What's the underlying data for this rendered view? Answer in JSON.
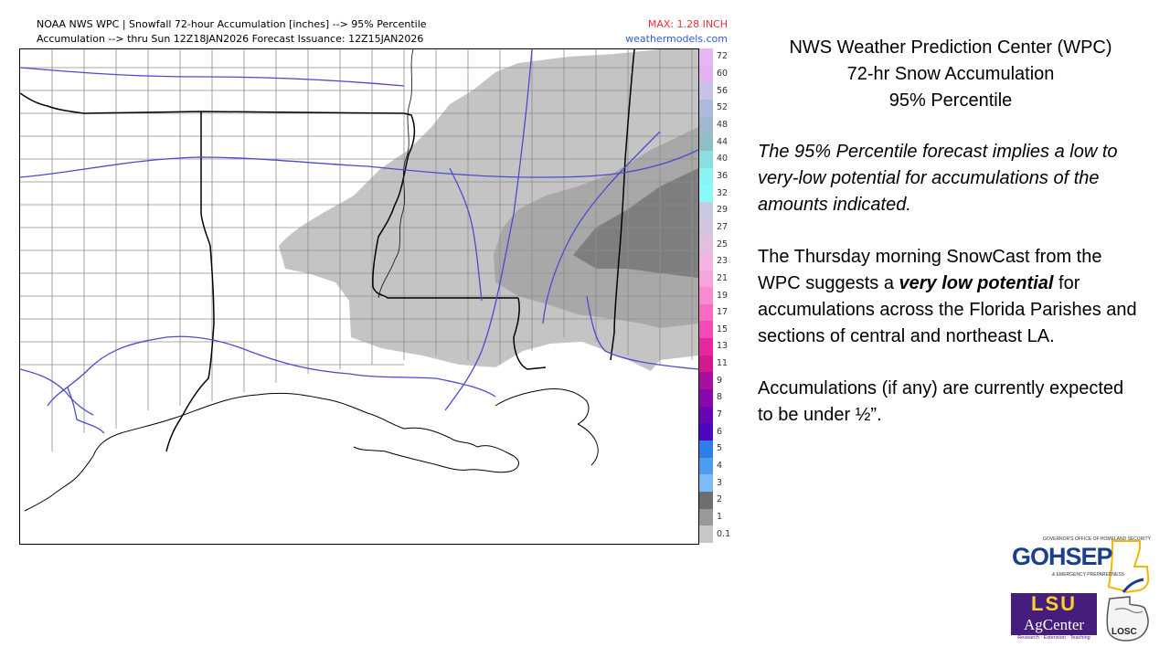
{
  "header": {
    "line1": "NOAA NWS WPC | Snowfall 72-hour Accumulation [inches] --> 95% Percentile",
    "line2": "Accumulation --> thru Sun 12Z18JAN2026   Forecast Issuance: 12Z15JAN2026",
    "max_label": "MAX: 1.28 INCH",
    "site": "weathermodels.com"
  },
  "colorbar": [
    {
      "label": "72",
      "color": "#e7b7f5"
    },
    {
      "label": "60",
      "color": "#e4b2f3"
    },
    {
      "label": "56",
      "color": "#c9c2e8"
    },
    {
      "label": "52",
      "color": "#aab9dc"
    },
    {
      "label": "48",
      "color": "#9fb8cf"
    },
    {
      "label": "44",
      "color": "#8fbfc3"
    },
    {
      "label": "40",
      "color": "#8bdedf"
    },
    {
      "label": "36",
      "color": "#8cf3f5"
    },
    {
      "label": "32",
      "color": "#8af9fb"
    },
    {
      "label": "29",
      "color": "#c9c9e1"
    },
    {
      "label": "27",
      "color": "#d4c5de"
    },
    {
      "label": "25",
      "color": "#e0c0dc"
    },
    {
      "label": "23",
      "color": "#f3b4e2"
    },
    {
      "label": "21",
      "color": "#f7a4dc"
    },
    {
      "label": "19",
      "color": "#f88ad2"
    },
    {
      "label": "17",
      "color": "#f76bc4"
    },
    {
      "label": "15",
      "color": "#f549b5"
    },
    {
      "label": "13",
      "color": "#e8269f"
    },
    {
      "label": "11",
      "color": "#d21a8e"
    },
    {
      "label": "9",
      "color": "#a80ea0"
    },
    {
      "label": "8",
      "color": "#8808ab"
    },
    {
      "label": "7",
      "color": "#6a05b3"
    },
    {
      "label": "6",
      "color": "#4a06c0"
    },
    {
      "label": "5",
      "color": "#2e7ee8"
    },
    {
      "label": "4",
      "color": "#4e9cf0"
    },
    {
      "label": "3",
      "color": "#7bbcf5"
    },
    {
      "label": "2",
      "color": "#6f6f6f"
    },
    {
      "label": "1",
      "color": "#999999"
    },
    {
      "label": "0.1",
      "color": "#c7c7c7"
    }
  ],
  "panel": {
    "title_line1": "NWS Weather Prediction Center (WPC)",
    "title_line2": "72-hr Snow Accumulation",
    "title_line3": "95% Percentile",
    "para1": "The 95% Percentile forecast implies a low to very-low potential for accumulations of the amounts indicated.",
    "para2_before": "The Thursday morning SnowCast from the WPC suggests a ",
    "para2_emph": "very low potential",
    "para2_after": " for accumulations across the Florida Parishes and sections of central and northeast LA.",
    "para3": "Accumulations (if any) are currently expected to be under ½”."
  },
  "logos": {
    "gohsep": "GOHSEP",
    "gohsep_top": "GOVERNOR'S OFFICE OF HOMELAND SECURITY",
    "gohsep_sub": "& EMERGENCY PREPAREDNESS",
    "lsu": "LSU",
    "agcenter": "AgCenter",
    "agcenter_sub": "Research · Extension · Teaching",
    "losc": "LOSC"
  },
  "colors": {
    "snow_light": "#c4c4c4",
    "snow_mid": "#a6a6a6",
    "snow_dark": "#7e7e7e",
    "highway": "#4b4bd0",
    "max_red": "#e8323b",
    "site_blue": "#2e5bd8"
  }
}
